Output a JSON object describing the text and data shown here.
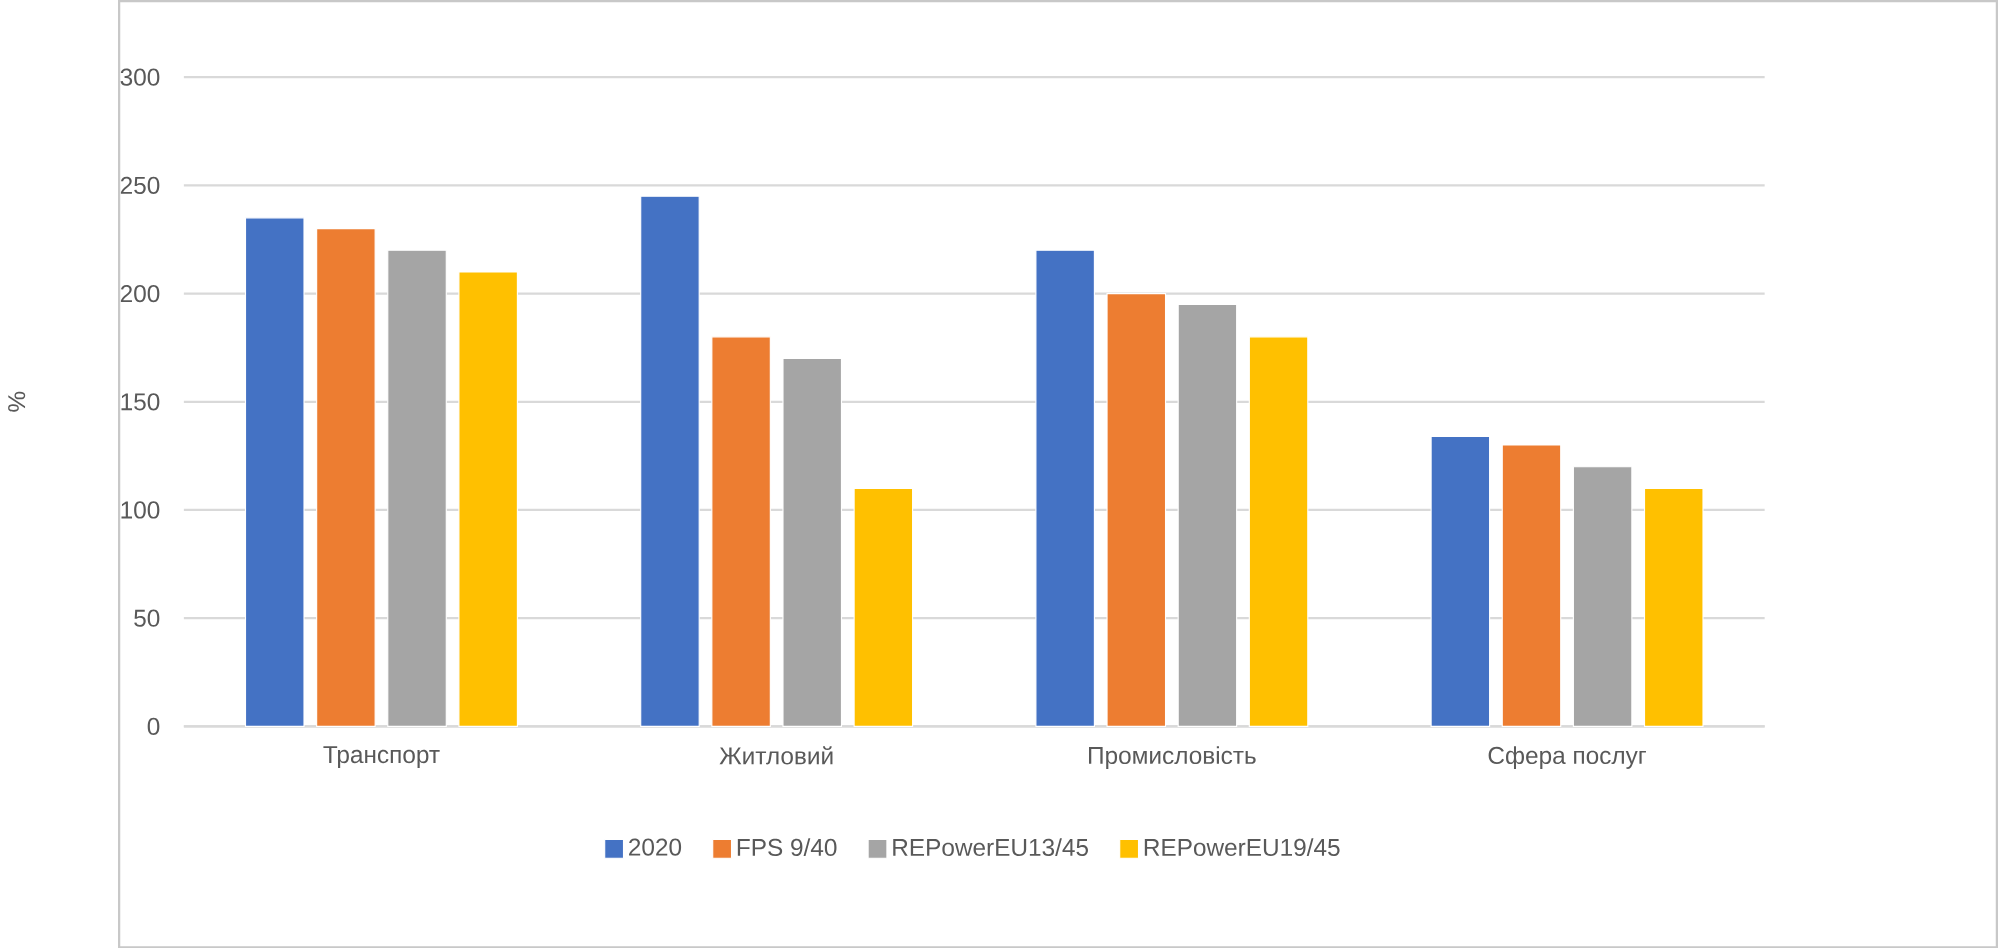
{
  "chart_data": {
    "type": "bar",
    "ylabel": "%",
    "categories": [
      "Транспорт",
      "Житловий",
      "Промисловість",
      "Сфера послуг"
    ],
    "series": [
      {
        "name": "2020",
        "color": "#4472c4",
        "values": [
          235,
          245,
          220,
          134
        ]
      },
      {
        "name": "FPS 9/40",
        "color": "#ed7d31",
        "values": [
          230,
          180,
          200,
          130
        ]
      },
      {
        "name": "REPowerEU13/45",
        "color": "#a5a5a5",
        "values": [
          220,
          170,
          195,
          120
        ]
      },
      {
        "name": "REPowerEU19/45",
        "color": "#ffc000",
        "values": [
          210,
          110,
          180,
          110
        ]
      }
    ],
    "ylim": [
      0,
      300
    ],
    "yticks": [
      0,
      50,
      100,
      150,
      200,
      250,
      300
    ],
    "grid": "y",
    "legend": "bottom"
  }
}
